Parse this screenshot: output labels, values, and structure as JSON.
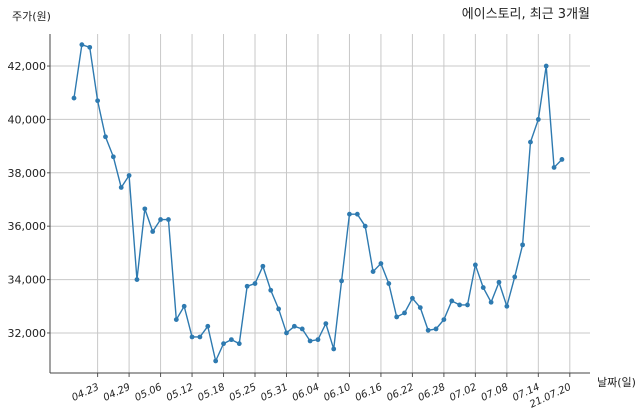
{
  "chart_data": {
    "type": "line",
    "title": "에이스토리, 최근 3개월",
    "ylabel": "주가(원)",
    "xlabel": "날짜(일)",
    "ylim": [
      30500,
      43200
    ],
    "yticks": [
      32000,
      34000,
      36000,
      38000,
      40000,
      42000
    ],
    "ytick_labels": [
      "32,000",
      "34,000",
      "36,000",
      "38,000",
      "40,000",
      "42,000"
    ],
    "grid": true,
    "line_color": "#2e7ab0",
    "tick_labels": [
      "04.23",
      "04.29",
      "05.06",
      "05.12",
      "05.18",
      "05.25",
      "05.31",
      "06.04",
      "06.10",
      "06.16",
      "06.22",
      "06.28",
      "07.02",
      "07.08",
      "07.14",
      "21.07.20"
    ],
    "tick_positions": [
      3,
      7,
      11,
      15,
      19,
      23,
      27,
      31,
      35,
      39,
      43,
      47,
      51,
      55,
      59,
      63
    ],
    "values": [
      40800,
      42800,
      42700,
      40700,
      39350,
      38600,
      37450,
      37900,
      34000,
      36650,
      35800,
      36250,
      36250,
      32500,
      33000,
      31850,
      31850,
      32250,
      30950,
      31600,
      31750,
      31600,
      33750,
      33850,
      34500,
      33600,
      32900,
      32000,
      32250,
      32150,
      31700,
      31750,
      32350,
      31400,
      33950,
      36450,
      36450,
      36000,
      34300,
      34600,
      33850,
      32600,
      32750,
      33300,
      32950,
      32100,
      32150,
      32500,
      33200,
      33050,
      33050,
      34550,
      33700,
      33150,
      33900,
      33000,
      34100,
      35300,
      39150,
      40000,
      42000,
      38200,
      38500
    ]
  }
}
